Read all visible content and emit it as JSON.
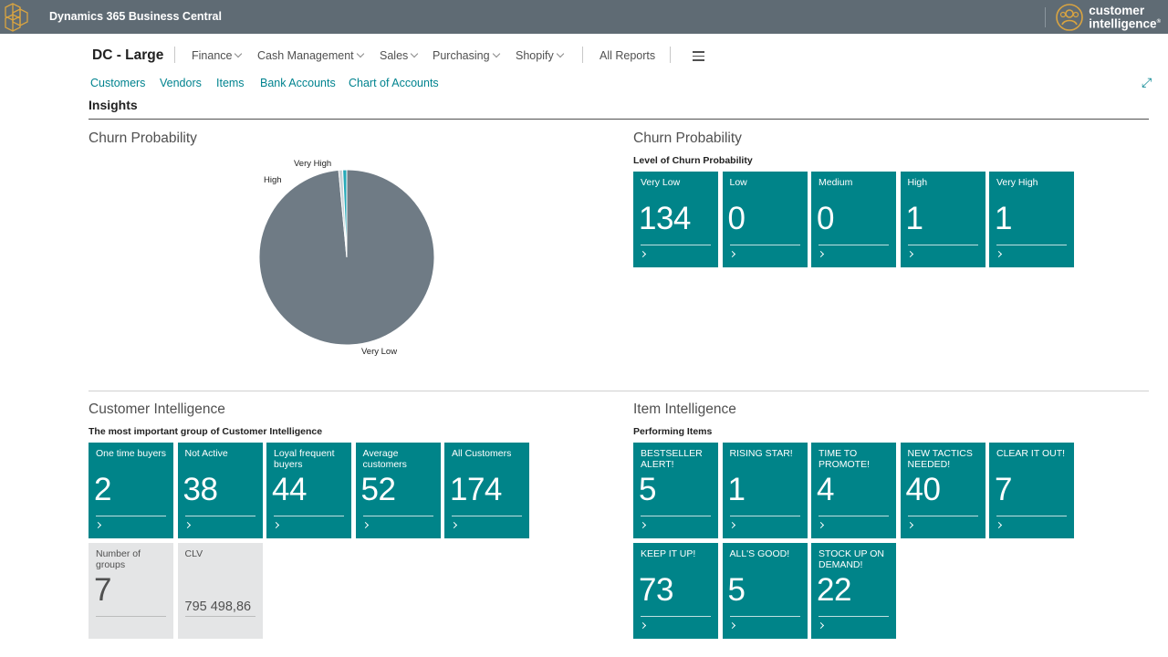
{
  "topbar": {
    "app_title": "Dynamics 365 Business Central",
    "brand_line1": "customer",
    "brand_line2": "intelligence",
    "brand_mark": "®"
  },
  "nav": {
    "company": "DC - Large",
    "menus": [
      {
        "label": "Finance"
      },
      {
        "label": "Cash Management"
      },
      {
        "label": "Sales"
      },
      {
        "label": "Purchasing"
      },
      {
        "label": "Shopify"
      }
    ],
    "all_reports": "All Reports",
    "links": [
      "Customers",
      "Vendors",
      "Items",
      "Bank Accounts",
      "Chart of Accounts"
    ]
  },
  "insights_title": "Insights",
  "churn_chart": {
    "title": "Churn Probability",
    "colors": {
      "Very Low": "#6f7b85",
      "High": "#c9d1d6",
      "Very High": "#26a9b8"
    },
    "chart_data": {
      "type": "pie",
      "categories": [
        "Very Low",
        "High",
        "Very High"
      ],
      "values": [
        134,
        1,
        1
      ],
      "title": "Churn Probability",
      "legend": "none"
    }
  },
  "churn_tiles": {
    "title": "Churn Probability",
    "subtitle": "Level of Churn Probability",
    "tiles": [
      {
        "label": "Very Low",
        "value": "134"
      },
      {
        "label": "Low",
        "value": "0"
      },
      {
        "label": "Medium",
        "value": "0"
      },
      {
        "label": "High",
        "value": "1"
      },
      {
        "label": "Very High",
        "value": "1"
      }
    ]
  },
  "customer_intel": {
    "title": "Customer Intelligence",
    "subtitle": "The most important group of Customer Intelligence",
    "tiles": [
      {
        "label": "One time buyers",
        "value": "2"
      },
      {
        "label": "Not Active",
        "value": "38"
      },
      {
        "label": "Loyal frequent buyers",
        "value": "44"
      },
      {
        "label": "Average customers",
        "value": "52"
      },
      {
        "label": "All Customers",
        "value": "174"
      }
    ],
    "gray_tiles": [
      {
        "label": "Number of groups",
        "value": "7"
      },
      {
        "label": "CLV",
        "value": "795 498,86"
      }
    ]
  },
  "item_intel": {
    "title": "Item Intelligence",
    "subtitle": "Performing Items",
    "tiles": [
      {
        "label": "BESTSELLER ALERT!",
        "value": "5"
      },
      {
        "label": "RISING STAR!",
        "value": "1"
      },
      {
        "label": "TIME TO PROMOTE!",
        "value": "4"
      },
      {
        "label": "NEW TACTICS NEEDED!",
        "value": "40"
      },
      {
        "label": "CLEAR IT OUT!",
        "value": "7"
      },
      {
        "label": "KEEP IT UP!",
        "value": "73"
      },
      {
        "label": "ALL'S GOOD!",
        "value": "5"
      },
      {
        "label": "STOCK UP ON DEMAND!",
        "value": "22"
      }
    ]
  }
}
